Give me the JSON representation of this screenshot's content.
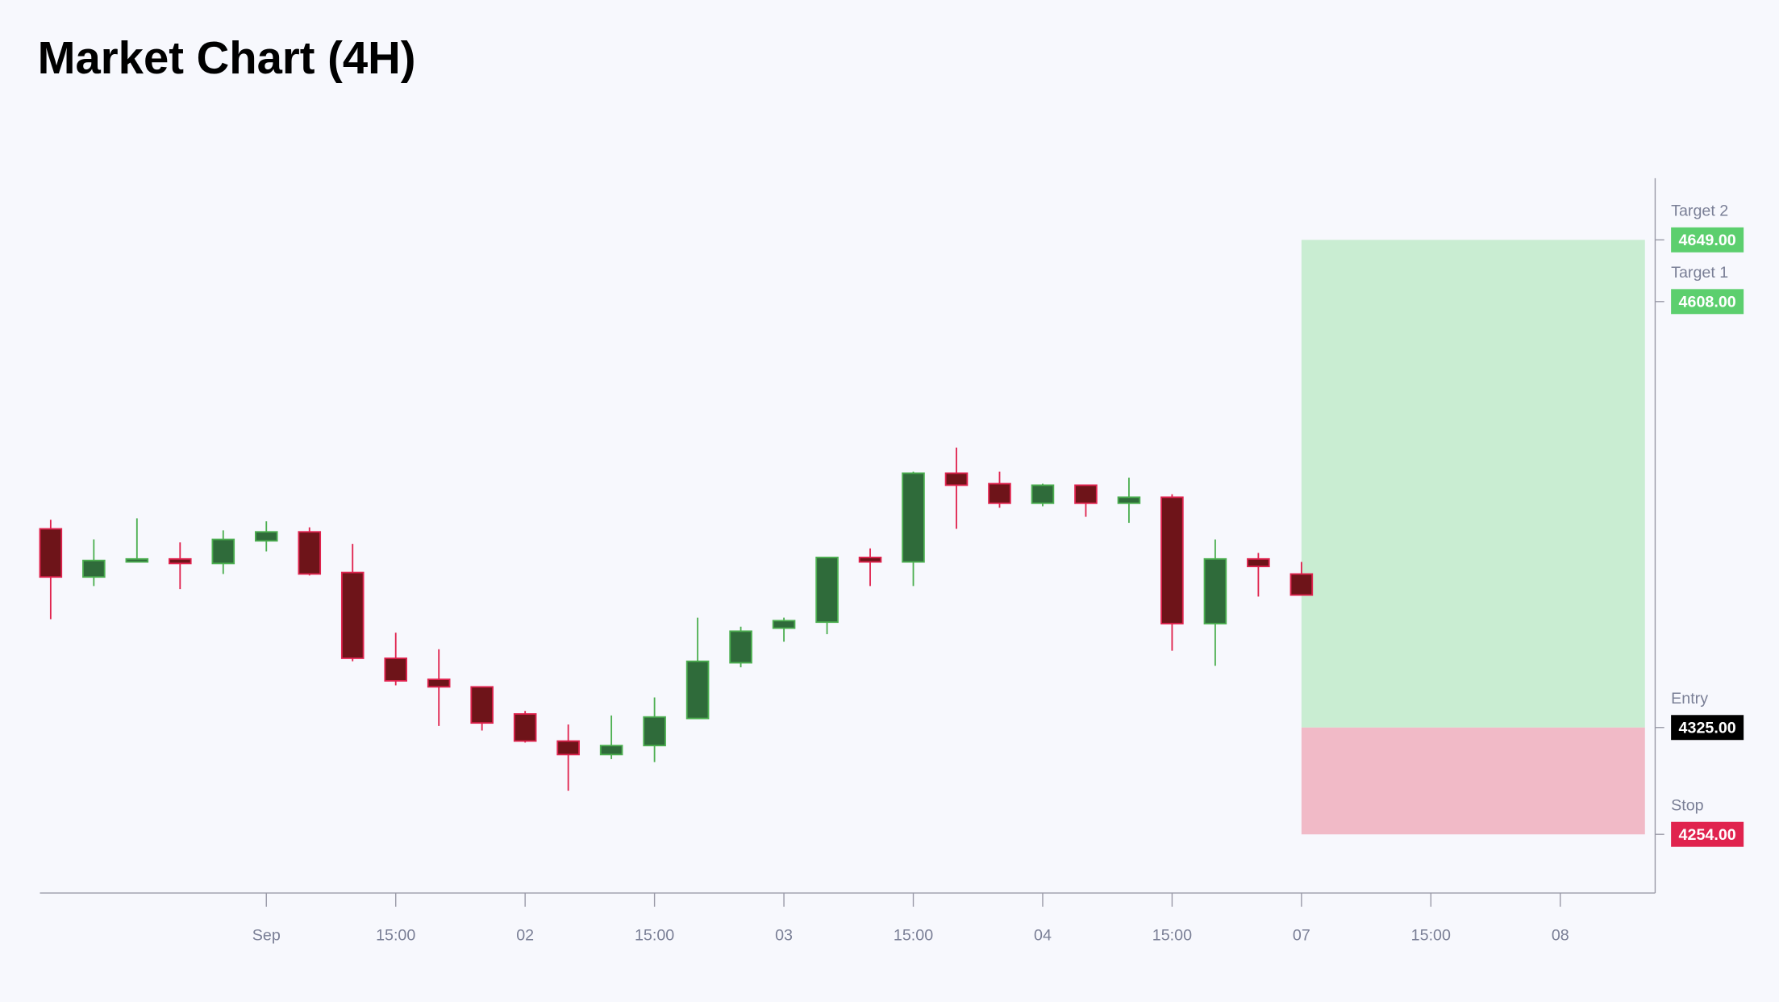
{
  "chart_data": {
    "type": "candlestick",
    "title": "Market Chart (4H)",
    "up_color": "#2f6b3a",
    "up_border": "#4caf50",
    "down_color": "#6e1419",
    "down_border": "#e0234e",
    "open": [
      4457,
      4425,
      4435,
      4437,
      4434,
      4449,
      4455,
      4428,
      4371,
      4357,
      4352,
      4334,
      4316,
      4307,
      4313,
      4331,
      4368,
      4391,
      4395,
      4438,
      4435,
      4494,
      4487,
      4474,
      4486,
      4474,
      4478,
      4394,
      4437,
      4427
    ],
    "high": [
      4463,
      4450,
      4464,
      4448,
      4456,
      4462,
      4458,
      4447,
      4388,
      4377,
      4352,
      4336,
      4327,
      4333,
      4345,
      4398,
      4392,
      4398,
      4438,
      4444,
      4495,
      4511,
      4495,
      4487,
      4486,
      4491,
      4480,
      4450,
      4441,
      4435
    ],
    "low": [
      4397,
      4419,
      4435,
      4417,
      4427,
      4442,
      4426,
      4369,
      4353,
      4326,
      4323,
      4315,
      4283,
      4304,
      4302,
      4331,
      4365,
      4382,
      4387,
      4419,
      4419,
      4457,
      4471,
      4472,
      4465,
      4461,
      4376,
      4366,
      4412,
      4413
    ],
    "close": [
      4425,
      4436,
      4437,
      4434,
      4450,
      4455,
      4427,
      4371,
      4356,
      4352,
      4328,
      4316,
      4307,
      4313,
      4332,
      4369,
      4389,
      4396,
      4438,
      4435,
      4494,
      4486,
      4474,
      4486,
      4474,
      4478,
      4394,
      4437,
      4432,
      4413
    ],
    "xlim": [
      -0.25,
      37.2
    ],
    "xticks": [
      {
        "value": 5,
        "label": "Sep"
      },
      {
        "value": 8,
        "label": "15:00"
      },
      {
        "value": 11,
        "label": "02"
      },
      {
        "value": 14,
        "label": "15:00"
      },
      {
        "value": 17,
        "label": "03"
      },
      {
        "value": 20,
        "label": "15:00"
      },
      {
        "value": 23,
        "label": "04"
      },
      {
        "value": 26,
        "label": "15:00"
      },
      {
        "value": 29,
        "label": "07"
      },
      {
        "value": 32,
        "label": "15:00"
      },
      {
        "value": 35,
        "label": "08"
      }
    ],
    "ylim": [
      4215,
      4690
    ],
    "levels": [
      {
        "name": "Target 2",
        "value": 4649,
        "label": "4649.00",
        "color": "#5ccf6e"
      },
      {
        "name": "Target 1",
        "value": 4608,
        "label": "4608.00",
        "color": "#5ccf6e"
      },
      {
        "name": "Entry",
        "value": 4325,
        "label": "4325.00",
        "color": "#000000"
      },
      {
        "name": "Stop",
        "value": 4254,
        "label": "4254.00",
        "color": "#e0234e"
      }
    ],
    "profit_zone_color": "#c9edd2",
    "loss_zone_color": "#f1bac7"
  }
}
